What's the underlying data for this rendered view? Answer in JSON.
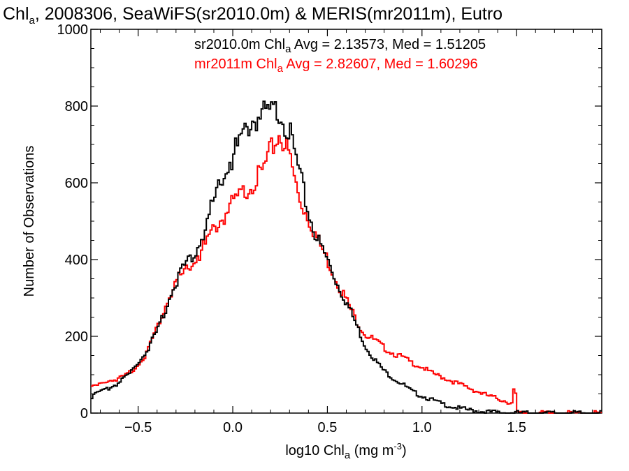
{
  "chart_data": {
    "type": "line",
    "title": {
      "prefix": "Chl",
      "sub": "a",
      "suffix": ", 2008306, SeaWiFS(sr2010.0m) & MERIS(mr2011m), Eutro"
    },
    "xlabel": {
      "prefix": "log10 Chl",
      "sub": "a",
      "mid": " (mg m",
      "sup": "-3",
      "suffix": ")"
    },
    "ylabel": "Number of Observations",
    "xlim": [
      -0.75,
      1.95
    ],
    "ylim": [
      0,
      1000
    ],
    "xticks": [
      -0.5,
      0.0,
      0.5,
      1.0,
      1.5
    ],
    "xtick_labels": [
      "−0.5",
      "0.0",
      "0.5",
      "1.0",
      "1.5"
    ],
    "yticks": [
      0,
      200,
      400,
      600,
      800,
      1000
    ],
    "ytick_labels": [
      "0",
      "200",
      "400",
      "600",
      "800",
      "1000"
    ],
    "bin_width": 0.01,
    "annotations": [
      {
        "name": "sr2010.0m",
        "prefix": "sr2010.0m Chl",
        "sub": "a",
        "suffix": " Avg = 2.13573, Med = 1.51205",
        "color": "#000000"
      },
      {
        "name": "mr2011m",
        "prefix": "mr2011m Chl",
        "sub": "a",
        "suffix": " Avg = 2.82607, Med = 1.60296",
        "color": "#ff0000"
      }
    ],
    "series": [
      {
        "name": "sr2010.0m",
        "color": "#000000",
        "x": [
          -0.75,
          -0.7,
          -0.65,
          -0.6,
          -0.55,
          -0.5,
          -0.45,
          -0.4,
          -0.35,
          -0.3,
          -0.25,
          -0.2,
          -0.15,
          -0.1,
          -0.05,
          0.0,
          0.05,
          0.1,
          0.15,
          0.2,
          0.25,
          0.3,
          0.35,
          0.4,
          0.45,
          0.5,
          0.55,
          0.6,
          0.65,
          0.7,
          0.75,
          0.8,
          0.85,
          0.9,
          0.95,
          1.0,
          1.05,
          1.1,
          1.15,
          1.2,
          1.25,
          1.3,
          1.35,
          1.4,
          1.45,
          1.5,
          1.55,
          1.6,
          1.95
        ],
        "y": [
          40,
          55,
          65,
          80,
          100,
          130,
          165,
          215,
          280,
          345,
          380,
          420,
          480,
          555,
          620,
          670,
          720,
          760,
          775,
          780,
          790,
          730,
          630,
          520,
          450,
          400,
          340,
          290,
          235,
          175,
          140,
          110,
          90,
          75,
          55,
          45,
          35,
          25,
          18,
          12,
          8,
          5,
          3,
          2,
          1,
          1,
          0,
          0,
          0
        ]
      },
      {
        "name": "mr2011m",
        "color": "#ff0000",
        "x": [
          -0.75,
          -0.7,
          -0.65,
          -0.6,
          -0.55,
          -0.5,
          -0.45,
          -0.4,
          -0.35,
          -0.3,
          -0.25,
          -0.2,
          -0.15,
          -0.1,
          -0.05,
          0.0,
          0.05,
          0.1,
          0.15,
          0.2,
          0.25,
          0.3,
          0.35,
          0.4,
          0.45,
          0.5,
          0.55,
          0.6,
          0.65,
          0.7,
          0.75,
          0.8,
          0.85,
          0.9,
          0.95,
          1.0,
          1.05,
          1.1,
          1.15,
          1.2,
          1.25,
          1.3,
          1.35,
          1.4,
          1.45,
          1.48,
          1.49,
          1.5,
          1.55,
          1.95
        ],
        "y": [
          65,
          75,
          85,
          90,
          105,
          125,
          160,
          220,
          290,
          345,
          370,
          400,
          435,
          480,
          510,
          545,
          570,
          600,
          620,
          680,
          730,
          670,
          560,
          510,
          450,
          400,
          345,
          295,
          245,
          205,
          190,
          170,
          155,
          145,
          130,
          120,
          105,
          95,
          85,
          75,
          65,
          55,
          45,
          38,
          30,
          25,
          95,
          0,
          0,
          0
        ]
      }
    ]
  }
}
